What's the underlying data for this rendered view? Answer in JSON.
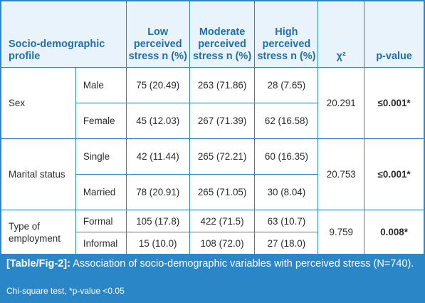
{
  "table": {
    "headers": {
      "profile": "Socio-demographic profile",
      "low": "Low perceived stress n (%)",
      "moderate": "Moderate perceived stress n (%)",
      "high": "High perceived stress n (%)",
      "chi": "χ²",
      "p": "p-value"
    },
    "groups": [
      {
        "label": "Sex",
        "chi": "20.291",
        "p": "≤0.001*",
        "rows": [
          {
            "category": "Male",
            "low": "75 (20.49)",
            "moderate": "263 (71.86)",
            "high": "28 (7.65)"
          },
          {
            "category": "Female",
            "low": "45 (12.03)",
            "moderate": "267 (71.39)",
            "high": "62 (16.58)"
          }
        ]
      },
      {
        "label": "Marital status",
        "chi": "20.753",
        "p": "≤0.001*",
        "rows": [
          {
            "category": "Single",
            "low": "42 (11.44)",
            "moderate": "265 (72.21)",
            "high": "60 (16.35)"
          },
          {
            "category": "Married",
            "low": "78 (20.91)",
            "moderate": "265 (71.05)",
            "high": "30 (8.04)"
          }
        ]
      },
      {
        "label": "Type of employment",
        "chi": "9.759",
        "p": "0.008*",
        "rows": [
          {
            "category": "Formal",
            "low": "105 (17.8)",
            "moderate": "422 (71.5)",
            "high": "63 (10.7)"
          },
          {
            "category": "Informal",
            "low": "15 (10.0)",
            "moderate": "108 (72.0)",
            "high": "27 (18.0)"
          }
        ]
      }
    ]
  },
  "caption": {
    "label": "[Table/Fig-2]:",
    "text": "Association of socio-demographic variables with perceived stress (N=740).",
    "note": "Chi-square test, *p-value <0.05"
  },
  "colors": {
    "accent": "#2a86c6",
    "header_bg": "#e9f3fb",
    "header_text": "#1f6fae"
  }
}
